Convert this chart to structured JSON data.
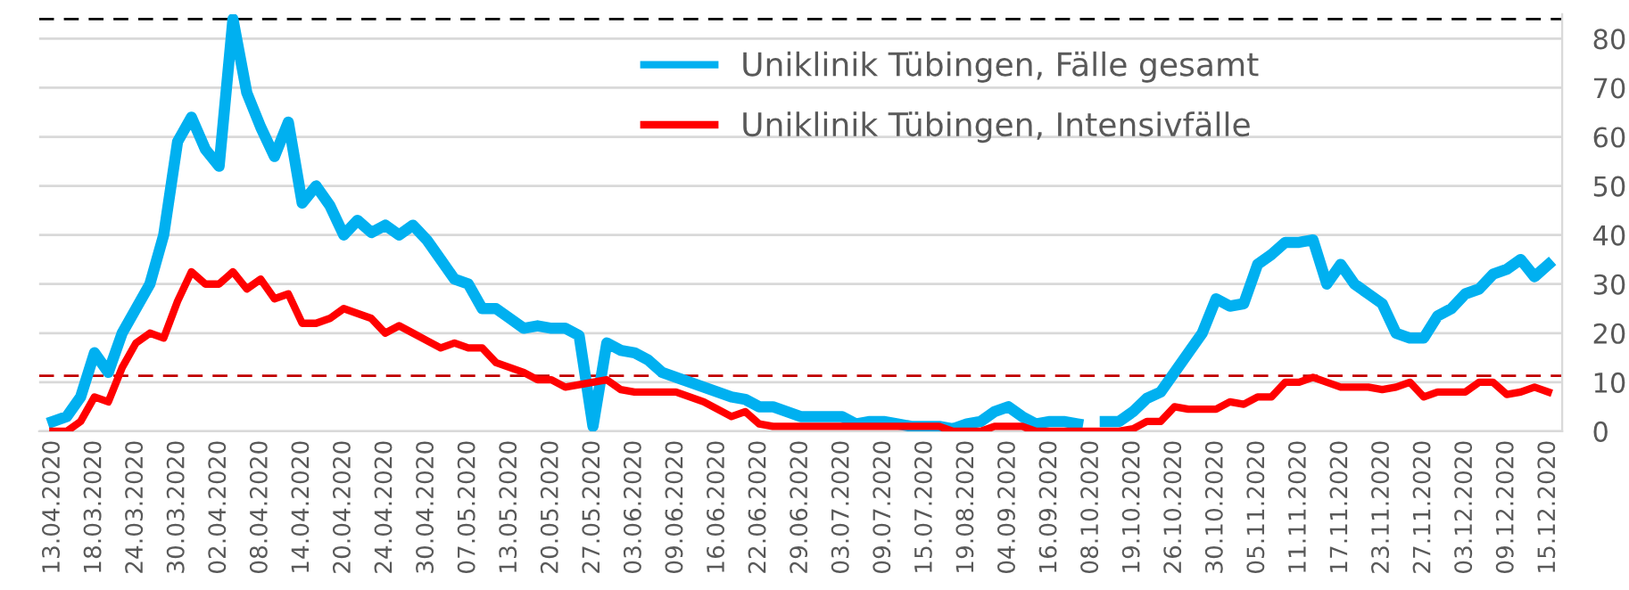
{
  "chart_data": {
    "type": "line",
    "categories": [
      "13.04.2020",
      null,
      null,
      "18.03.2020",
      null,
      null,
      "24.03.2020",
      null,
      null,
      "30.03.2020",
      null,
      null,
      "02.04.2020",
      null,
      null,
      "08.04.2020",
      null,
      null,
      "14.04.2020",
      null,
      null,
      "20.04.2020",
      null,
      null,
      "24.04.2020",
      null,
      null,
      "30.04.2020",
      null,
      null,
      "07.05.2020",
      null,
      null,
      "13.05.2020",
      null,
      null,
      "20.05.2020",
      null,
      null,
      "27.05.2020",
      null,
      null,
      "03.06.2020",
      null,
      null,
      "09.06.2020",
      null,
      null,
      "16.06.2020",
      null,
      null,
      "22.06.2020",
      null,
      null,
      "29.06.2020",
      null,
      null,
      "03.07.2020",
      null,
      null,
      "09.07.2020",
      null,
      null,
      "15.07.2020",
      null,
      null,
      "19.08.2020",
      null,
      null,
      "04.09.2020",
      null,
      null,
      "16.09.2020",
      null,
      null,
      "08.10.2020",
      null,
      null,
      "19.10.2020",
      null,
      null,
      "26.10.2020",
      null,
      null,
      "30.10.2020",
      null,
      null,
      "05.11.2020",
      null,
      null,
      "11.11.2020",
      null,
      null,
      "17.11.2020",
      null,
      null,
      "23.11.2020",
      null,
      null,
      "27.11.2020",
      null,
      null,
      "03.12.2020",
      null,
      null,
      "09.12.2020",
      null,
      null,
      "15.12.2020"
    ],
    "series": [
      {
        "name": "Uniklinik Tübingen, Fälle gesamt",
        "color": "#00b0f0",
        "values": [
          2,
          3,
          7,
          16,
          12,
          20,
          25,
          30,
          40,
          59,
          64,
          57.5,
          54,
          84,
          69,
          62,
          56,
          63,
          46.5,
          50,
          46,
          40,
          43,
          40.5,
          42,
          40,
          42,
          39,
          35,
          31,
          30,
          25,
          25,
          23,
          21,
          21.5,
          21,
          21,
          19.5,
          1,
          18,
          16.5,
          16,
          14.5,
          12,
          11,
          10,
          9,
          8,
          7,
          6.5,
          5,
          5,
          4,
          3,
          3,
          3,
          3,
          1.5,
          2,
          2,
          1.5,
          1,
          1,
          1,
          0.5,
          1.5,
          2,
          4,
          5,
          3,
          1.5,
          2,
          2,
          1.5,
          null,
          2,
          2,
          4,
          6.7,
          8,
          12,
          16,
          20,
          27,
          25.5,
          26,
          34,
          36,
          38.5,
          38.5,
          39,
          30,
          34,
          30,
          28,
          26,
          20,
          19,
          19,
          23.5,
          25,
          28,
          29,
          32,
          33,
          35,
          31.5,
          34
        ]
      },
      {
        "name": "Uniklinik Tübingen, Intensivfälle",
        "color": "#ff0000",
        "values": [
          0,
          0,
          2,
          7,
          6,
          13,
          18,
          20,
          19,
          26.5,
          32.5,
          30,
          30,
          32.5,
          29,
          31,
          27,
          28,
          22,
          22,
          23,
          25,
          24,
          23,
          20,
          21.5,
          20,
          18.5,
          17,
          18,
          17,
          17,
          14,
          13,
          12,
          10.5,
          10.5,
          9,
          9.5,
          10,
          10.5,
          8.5,
          8,
          8,
          8,
          8,
          7,
          6,
          4.5,
          3,
          4,
          1.5,
          1,
          1,
          1,
          1,
          1,
          1,
          1,
          1,
          1,
          1,
          1,
          1,
          1,
          0,
          0,
          0,
          1,
          1,
          1,
          0,
          0,
          0,
          0,
          0,
          0,
          0,
          0.5,
          2,
          2,
          5,
          4.5,
          4.5,
          4.5,
          6,
          5.5,
          7,
          7,
          10,
          10,
          11,
          10,
          9,
          9,
          9,
          8.5,
          9,
          10,
          7,
          8,
          8,
          8,
          10,
          10,
          7.5,
          8,
          9,
          8
        ]
      }
    ],
    "ylim": [
      0,
      85
    ],
    "yticks": [
      0,
      10,
      20,
      30,
      40,
      50,
      60,
      70,
      80
    ],
    "ref_lines": [
      {
        "axis": "y",
        "value": 84,
        "color": "#000000",
        "line_style": "dashed"
      },
      {
        "axis": "y",
        "value": 11.3,
        "color": "#c00000",
        "line_style": "dashed"
      }
    ],
    "grid": "y",
    "legend": "top right",
    "marker": "none",
    "line_style": "solid"
  }
}
